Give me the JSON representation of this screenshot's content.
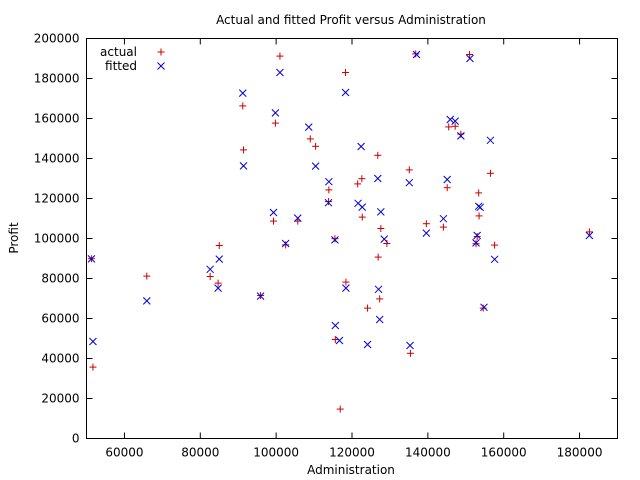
{
  "chart_data": {
    "type": "scatter",
    "title": "Actual and fitted Profit versus Administration",
    "xlabel": "Administration",
    "ylabel": "Profit",
    "xlim": [
      50000,
      190000
    ],
    "ylim": [
      0,
      200000
    ],
    "x_ticks": [
      60000,
      80000,
      100000,
      120000,
      140000,
      160000,
      180000
    ],
    "x_tick_labels": [
      "60000",
      "80000",
      "100000",
      "120000",
      "140000",
      "160000",
      "180000"
    ],
    "y_ticks": [
      0,
      20000,
      40000,
      60000,
      80000,
      100000,
      120000,
      140000,
      160000,
      180000,
      200000
    ],
    "y_tick_labels": [
      "0",
      "20000",
      "40000",
      "60000",
      "80000",
      "100000",
      "120000",
      "140000",
      "160000",
      "180000",
      "200000"
    ],
    "grid": false,
    "legend_position": "top-left",
    "series": [
      {
        "name": "actual",
        "marker": "plus",
        "color": "#cc0000",
        "points": [
          [
            51700,
            35700
          ],
          [
            51300,
            89900
          ],
          [
            65900,
            81200
          ],
          [
            82600,
            81000
          ],
          [
            84700,
            77700
          ],
          [
            85000,
            96500
          ],
          [
            91400,
            144300
          ],
          [
            91200,
            166300
          ],
          [
            95900,
            71500
          ],
          [
            99300,
            108700
          ],
          [
            99800,
            157700
          ],
          [
            101000,
            191200
          ],
          [
            102500,
            96800
          ],
          [
            105700,
            108700
          ],
          [
            109000,
            149800
          ],
          [
            110400,
            146100
          ],
          [
            113900,
            124300
          ],
          [
            113800,
            118500
          ],
          [
            115500,
            99900
          ],
          [
            115600,
            49500
          ],
          [
            116900,
            14700
          ],
          [
            118300,
            183000
          ],
          [
            118400,
            78200
          ],
          [
            121500,
            127300
          ],
          [
            122600,
            129900
          ],
          [
            122700,
            110700
          ],
          [
            124100,
            65200
          ],
          [
            126800,
            141600
          ],
          [
            126900,
            90700
          ],
          [
            127300,
            69800
          ],
          [
            127600,
            105000
          ],
          [
            129200,
            97500
          ],
          [
            135100,
            134300
          ],
          [
            135400,
            42600
          ],
          [
            136800,
            192300
          ],
          [
            139600,
            107400
          ],
          [
            144100,
            105700
          ],
          [
            145100,
            125400
          ],
          [
            145500,
            155800
          ],
          [
            147200,
            156100
          ],
          [
            148700,
            152200
          ],
          [
            151000,
            192000
          ],
          [
            152700,
            97400
          ],
          [
            153000,
            101000
          ],
          [
            153500,
            111300
          ],
          [
            153400,
            122800
          ],
          [
            154600,
            65200
          ],
          [
            156500,
            132600
          ],
          [
            157600,
            96700
          ],
          [
            182600,
            103300
          ]
        ]
      },
      {
        "name": "fitted",
        "marker": "cross",
        "color": "#0000dd",
        "points": [
          [
            51700,
            48500
          ],
          [
            51300,
            89800
          ],
          [
            65900,
            68800
          ],
          [
            82600,
            84600
          ],
          [
            84700,
            75200
          ],
          [
            85000,
            89700
          ],
          [
            91400,
            136300
          ],
          [
            91200,
            172700
          ],
          [
            95900,
            71200
          ],
          [
            99300,
            113000
          ],
          [
            99800,
            162800
          ],
          [
            101000,
            183000
          ],
          [
            102500,
            97500
          ],
          [
            105700,
            110200
          ],
          [
            108600,
            155700
          ],
          [
            110400,
            136200
          ],
          [
            113900,
            128400
          ],
          [
            113800,
            117900
          ],
          [
            115500,
            99300
          ],
          [
            115600,
            56500
          ],
          [
            116700,
            49000
          ],
          [
            118300,
            173000
          ],
          [
            118400,
            75200
          ],
          [
            121600,
            117600
          ],
          [
            122400,
            146000
          ],
          [
            122700,
            115700
          ],
          [
            124100,
            47000
          ],
          [
            126800,
            130000
          ],
          [
            127000,
            74600
          ],
          [
            127300,
            59500
          ],
          [
            127600,
            113300
          ],
          [
            128500,
            99700
          ],
          [
            135100,
            127900
          ],
          [
            135300,
            46500
          ],
          [
            137000,
            192000
          ],
          [
            139600,
            102700
          ],
          [
            144100,
            109900
          ],
          [
            145100,
            129500
          ],
          [
            145900,
            159500
          ],
          [
            147200,
            158700
          ],
          [
            148700,
            151300
          ],
          [
            151100,
            190000
          ],
          [
            152700,
            97800
          ],
          [
            153000,
            101500
          ],
          [
            153400,
            116100
          ],
          [
            153800,
            115600
          ],
          [
            154800,
            65600
          ],
          [
            156500,
            149100
          ],
          [
            157600,
            89600
          ],
          [
            182600,
            101500
          ]
        ]
      }
    ]
  }
}
